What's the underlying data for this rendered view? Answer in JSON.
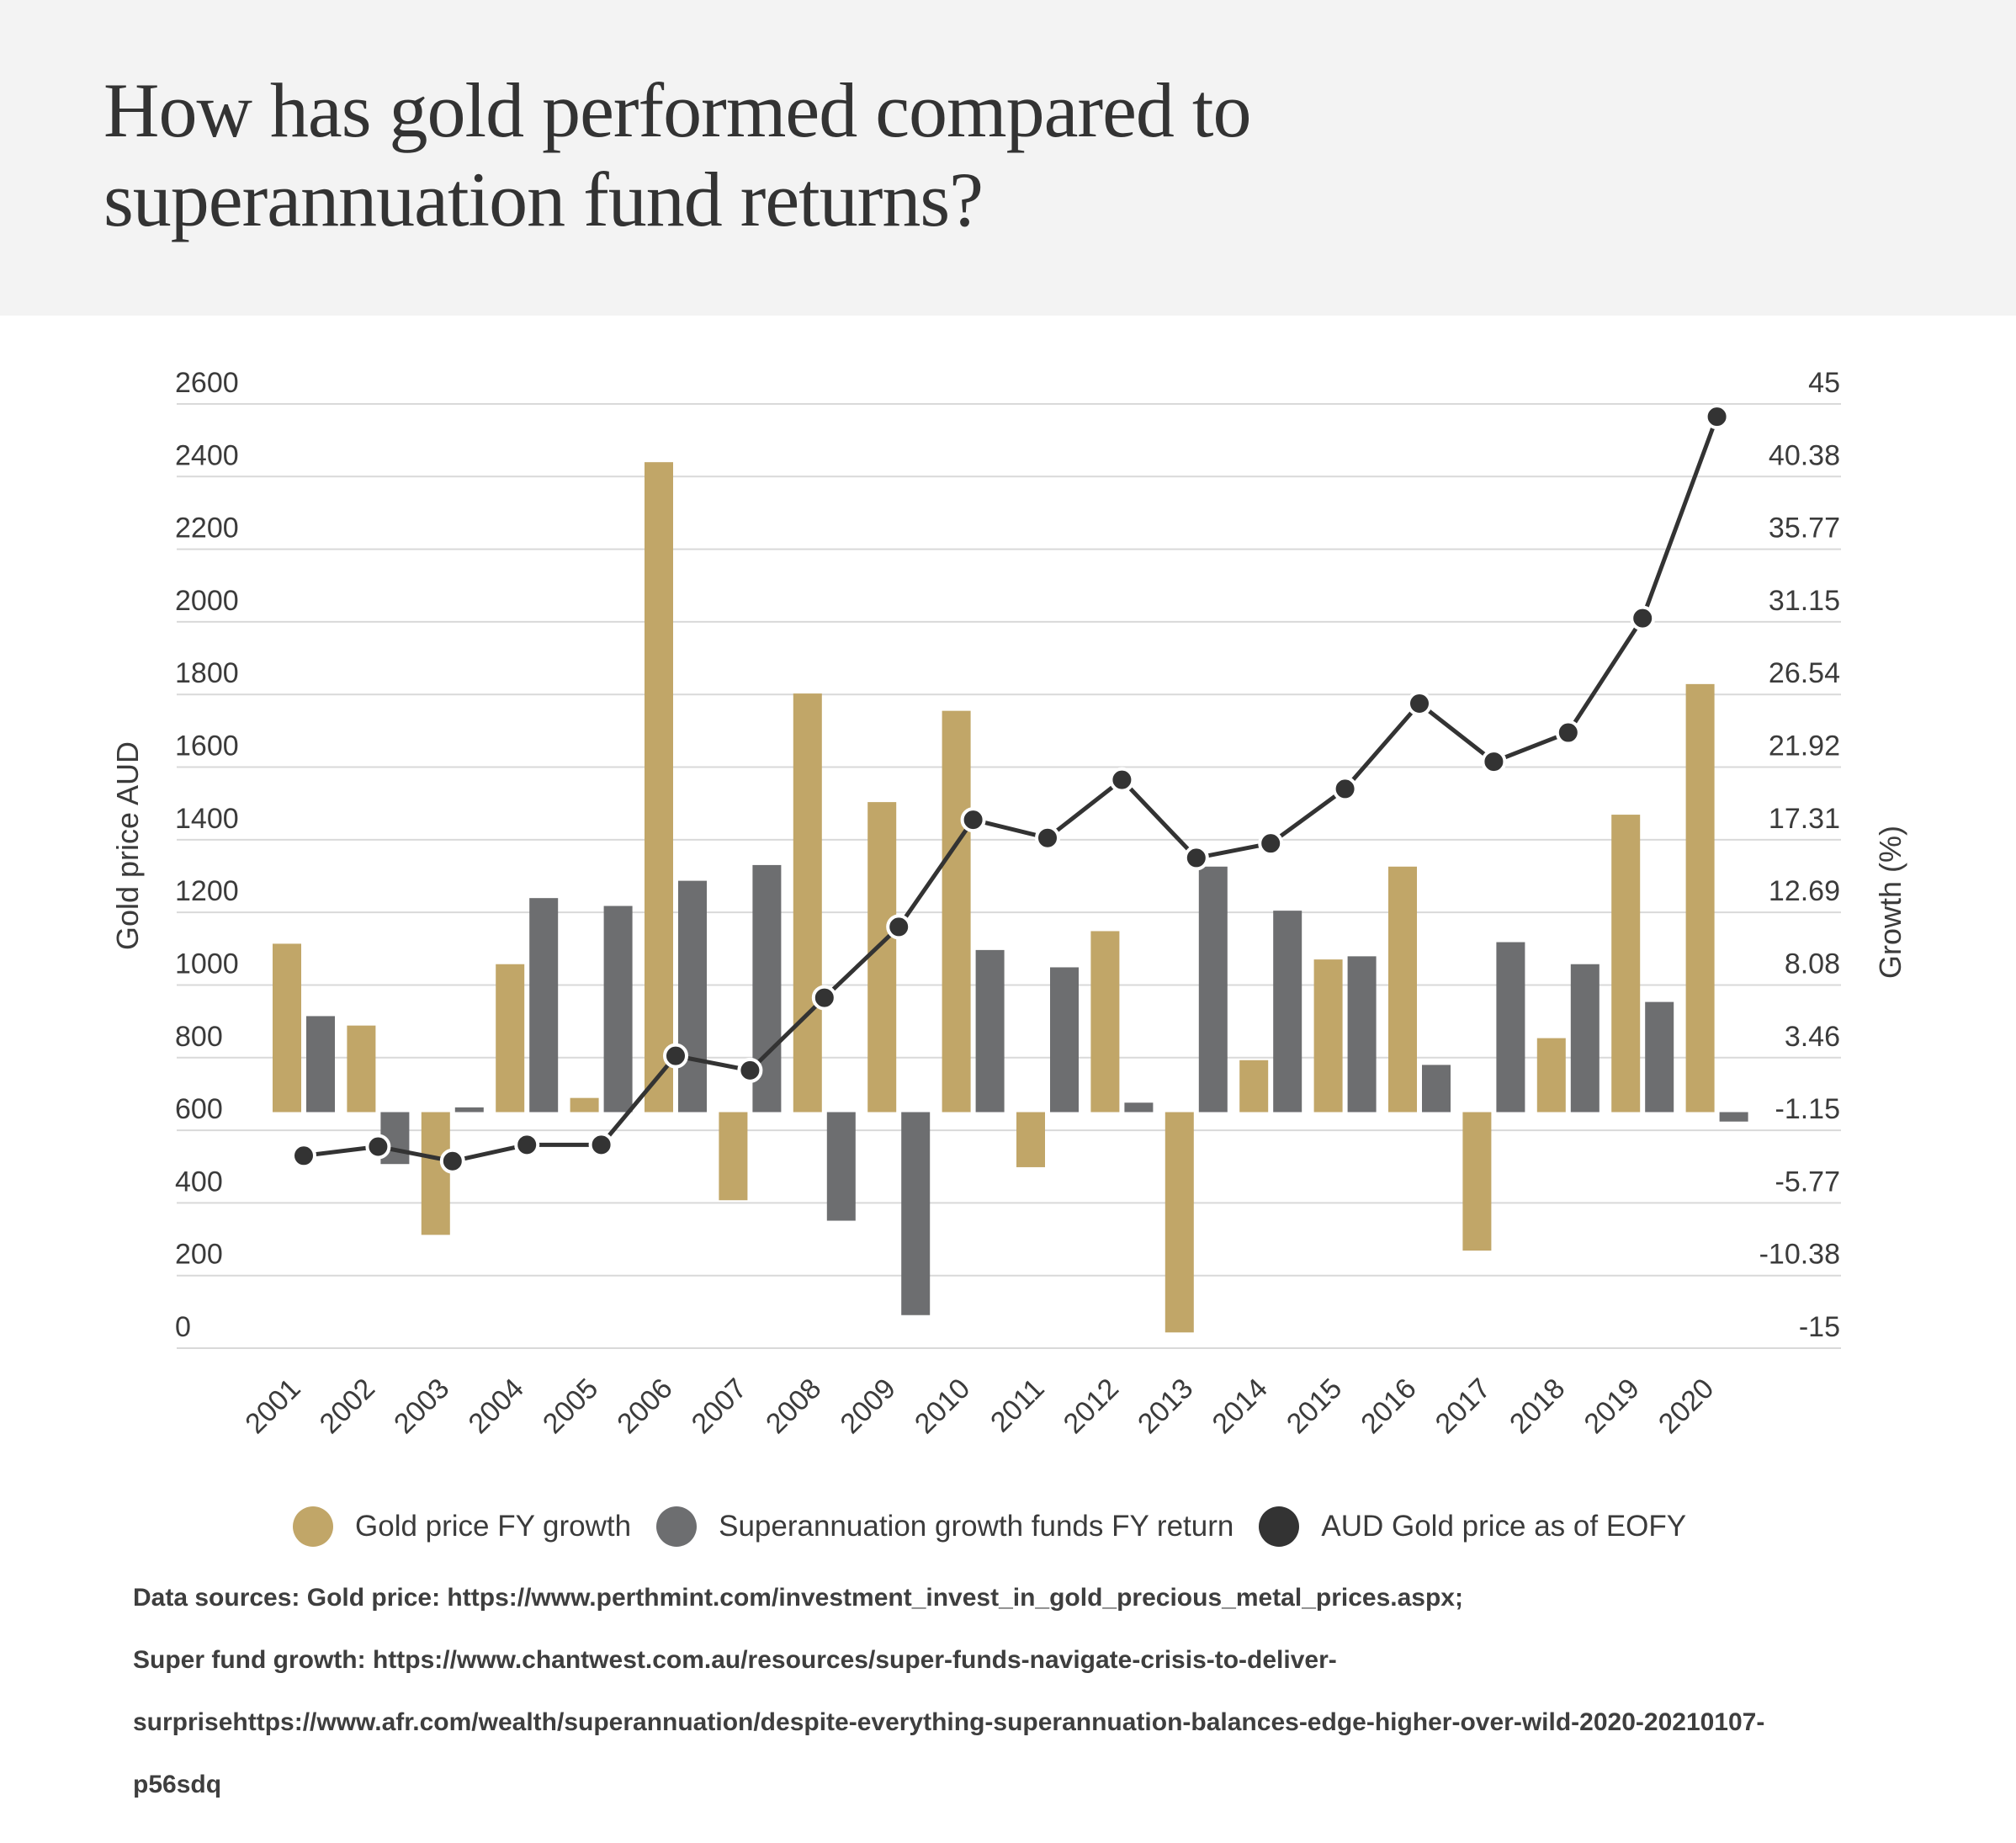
{
  "title_line1": "How has gold performed compared to",
  "title_line2": "superannuation fund returns?",
  "colors": {
    "header_bg": "#f3f3f3",
    "gold": "#c1a668",
    "super": "#6d6e70",
    "line": "#333333",
    "grid": "#d9d9d9"
  },
  "legend": [
    {
      "label": "Gold price FY growth",
      "color": "#c1a668"
    },
    {
      "label": "Superannuation growth funds FY return",
      "color": "#6d6e70"
    },
    {
      "label": "AUD Gold price as of EOFY",
      "color": "#333333"
    }
  ],
  "sources": [
    "Data sources: Gold price: https://www.perthmint.com/investment_invest_in_gold_precious_metal_prices.aspx;",
    "Super fund growth: https://www.chantwest.com.au/resources/super-funds-navigate-crisis-to-deliver-",
    "surprisehttps://www.afr.com/wealth/superannuation/despite-everything-superannuation-balances-edge-higher-over-wild-2020-20210107-",
    "p56sdq"
  ],
  "chart_data": {
    "type": "bar",
    "categories": [
      "2001",
      "2002",
      "2003",
      "2004",
      "2005",
      "2006",
      "2007",
      "2008",
      "2009",
      "2010",
      "2011",
      "2012",
      "2013",
      "2014",
      "2015",
      "2016",
      "2017",
      "2018",
      "2019",
      "2020"
    ],
    "series": [
      {
        "name": "Gold price FY growth",
        "type": "bar",
        "axis": "right",
        "values": [
          10.7,
          5.5,
          -7.8,
          9.4,
          0.9,
          41.3,
          -5.6,
          26.6,
          19.7,
          25.5,
          -3.5,
          11.5,
          -14.0,
          3.3,
          9.7,
          15.6,
          -8.8,
          4.7,
          18.9,
          27.2
        ]
      },
      {
        "name": "Superannuation growth funds FY return",
        "type": "bar",
        "axis": "right",
        "values": [
          6.1,
          -3.3,
          0.3,
          13.6,
          13.1,
          14.7,
          15.7,
          -6.9,
          -12.9,
          10.3,
          9.2,
          0.6,
          15.6,
          12.8,
          9.9,
          3.0,
          10.8,
          9.4,
          7.0,
          -0.6
        ]
      },
      {
        "name": "AUD Gold price as of EOFY",
        "type": "line",
        "axis": "left",
        "values": [
          530,
          555,
          515,
          560,
          560,
          805,
          765,
          965,
          1160,
          1455,
          1405,
          1565,
          1350,
          1390,
          1540,
          1775,
          1615,
          1695,
          2010,
          2565
        ]
      }
    ],
    "left_axis": {
      "title": "Gold price AUD",
      "range": [
        0,
        2600
      ],
      "ticks": [
        "0",
        "200",
        "400",
        "600",
        "800",
        "1000",
        "1200",
        "1400",
        "1600",
        "1800",
        "2000",
        "2200",
        "2400",
        "2600"
      ]
    },
    "right_axis": {
      "title": "Growth (%)",
      "range": [
        -15,
        45
      ],
      "ticks": [
        "-15",
        "-10.38",
        "-5.77",
        "-1.15",
        "3.46",
        "8.08",
        "12.69",
        "17.31",
        "21.92",
        "26.54",
        "31.15",
        "35.77",
        "40.38",
        "45"
      ]
    },
    "grid": true,
    "legend_position": "bottom"
  }
}
